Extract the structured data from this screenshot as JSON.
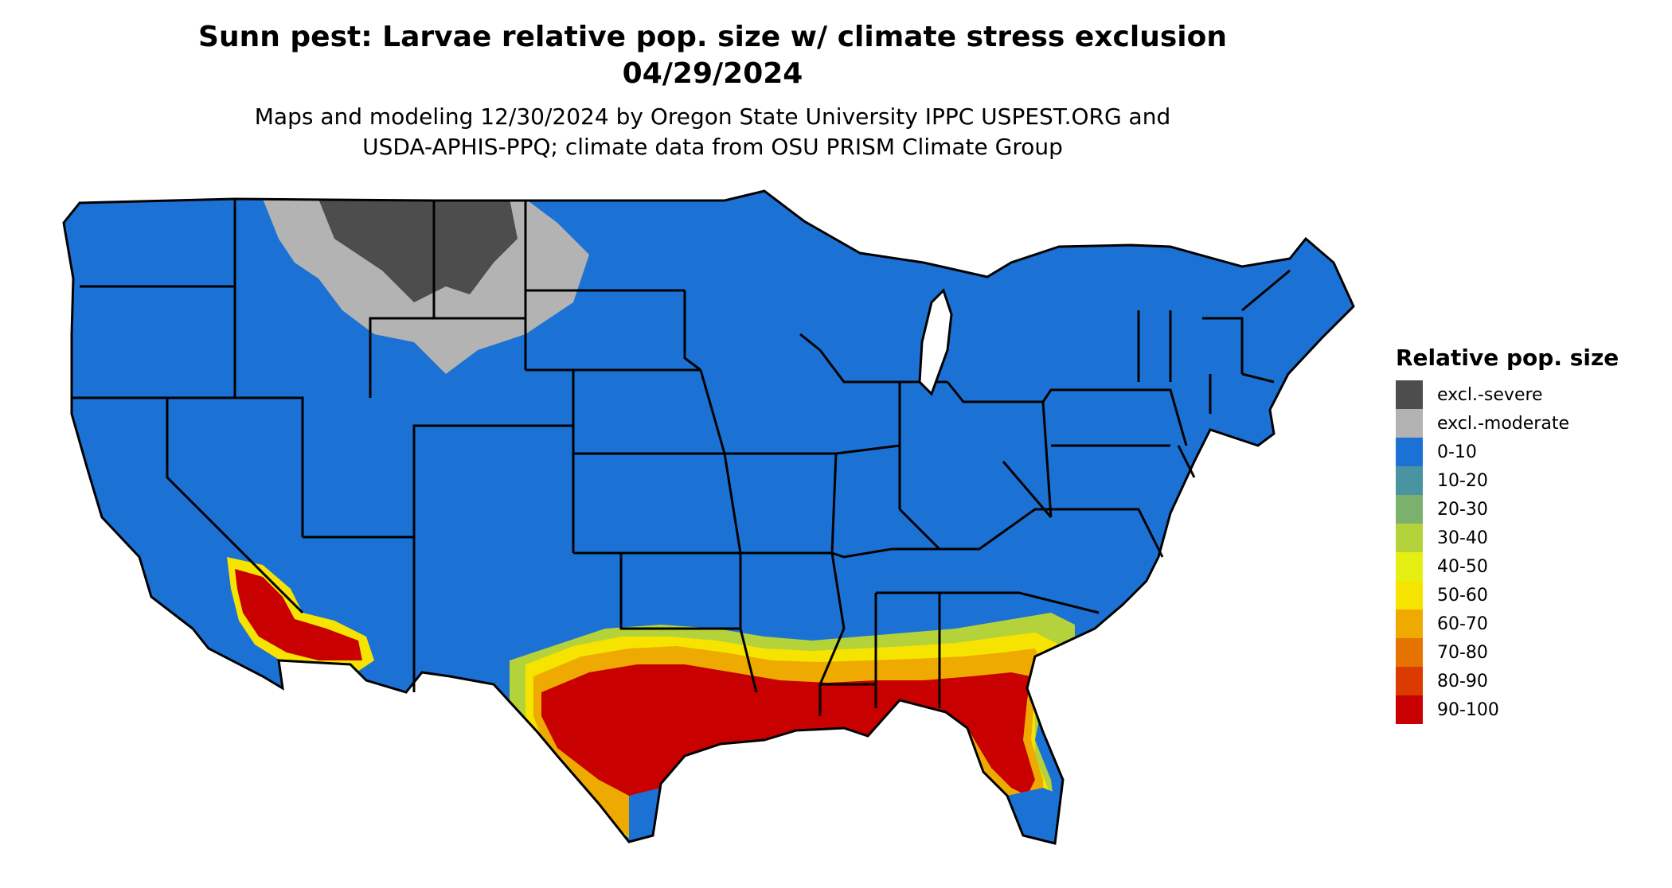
{
  "header": {
    "title_line1": "Sunn pest: Larvae relative pop. size w/ climate stress exclusion",
    "title_line2": "04/29/2024",
    "subtitle_line1": "Maps and modeling 12/30/2024 by Oregon State University IPPC USPEST.ORG and",
    "subtitle_line2": "USDA-APHIS-PPQ; climate data from OSU PRISM Climate Group"
  },
  "legend": {
    "title": "Relative pop. size",
    "items": [
      {
        "label": "excl.-severe",
        "color": "#4d4d4d"
      },
      {
        "label": "excl.-moderate",
        "color": "#b3b3b3"
      },
      {
        "label": "0-10",
        "color": "#1c72d4"
      },
      {
        "label": "10-20",
        "color": "#4a93a0"
      },
      {
        "label": "20-30",
        "color": "#7bb06d"
      },
      {
        "label": "30-40",
        "color": "#b4d23a"
      },
      {
        "label": "40-50",
        "color": "#e6ef12"
      },
      {
        "label": "50-60",
        "color": "#f6e400"
      },
      {
        "label": "60-70",
        "color": "#eeaa00"
      },
      {
        "label": "70-80",
        "color": "#e67300"
      },
      {
        "label": "80-90",
        "color": "#db3a00"
      },
      {
        "label": "90-100",
        "color": "#c80000"
      }
    ]
  }
}
